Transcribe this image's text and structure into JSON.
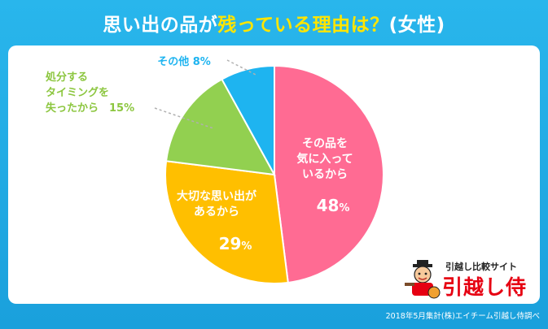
{
  "title": {
    "part1": "思い出の品が",
    "part2": "残っている理由は？",
    "part3": "(女性)"
  },
  "chart_data": {
    "type": "pie",
    "start": "12 o'clock",
    "direction": "clockwise",
    "slices": [
      {
        "lines": [
          "その品を",
          "気に入って",
          "いるから"
        ],
        "value": 48,
        "value_label": "48",
        "unit": "%",
        "color": "#ff6b93",
        "text_color": "#ffffff",
        "label_position": "inside"
      },
      {
        "lines": [
          "大切な思い出が",
          "あるから"
        ],
        "value": 29,
        "value_label": "29",
        "unit": "%",
        "color": "#ffbf00",
        "text_color": "#ffffff",
        "label_position": "inside"
      },
      {
        "lines": [
          "処分する",
          "タイミングを",
          "失ったから　15%"
        ],
        "value": 15,
        "color": "#92d050",
        "text_color": "#8cc63f",
        "label_position": "outside-left"
      },
      {
        "lines": [
          "その他 8%"
        ],
        "value": 8,
        "color": "#1eb4f0",
        "text_color": "#1eb4f0",
        "label_position": "outside-top"
      }
    ]
  },
  "logo": {
    "subtitle": "引越し比較サイト",
    "name": "引越し侍"
  },
  "footnote": "2018年5月集計(株)エイチーム引越し侍調べ",
  "colors": {
    "background": "#1aa0dc",
    "title_highlight": "#ffe500",
    "panel": "#ffffff",
    "logo_red": "#e60012"
  }
}
